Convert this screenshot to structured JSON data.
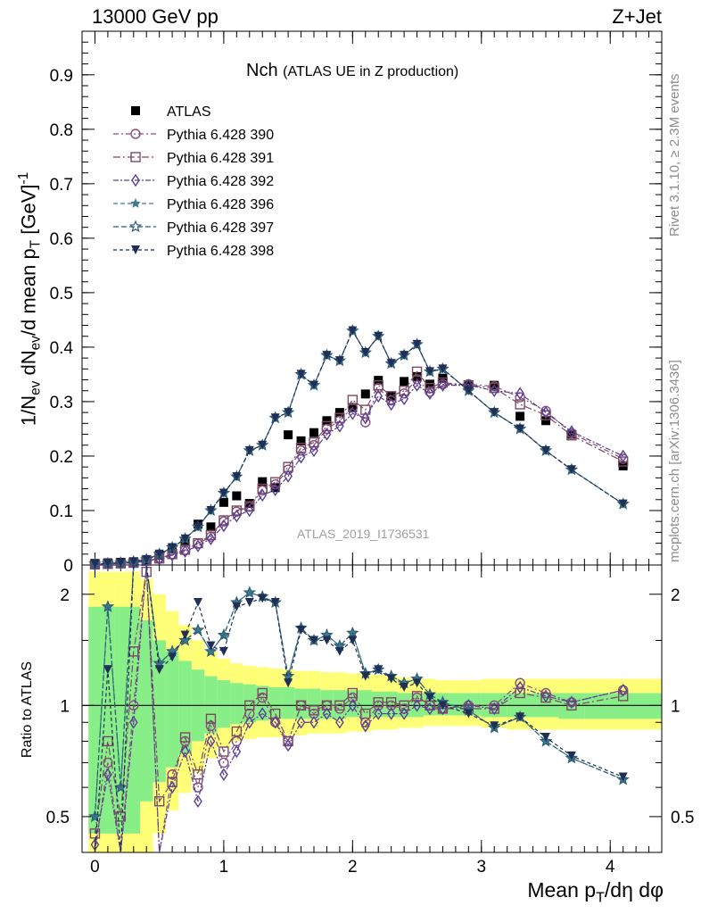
{
  "header": {
    "left": "13000 GeV pp",
    "right": "Z+Jet"
  },
  "side_text": {
    "rivet": "Rivet 3.1.10, ≥ 2.3M events",
    "mcplots": "mcplots.cern.ch [arXiv:1306.3436]"
  },
  "analysis_id": "ATLAS_2019_I1736531",
  "titles": {
    "main": "Nch",
    "sub": "(ATLAS UE in Z production)"
  },
  "axes": {
    "x_label_main": "Mean p",
    "x_label_sub": "T",
    "x_label_tail": "/dη dφ",
    "y_top_label": "1/N_ev dN_ev/d mean p_T [GeV]^-1",
    "y_bottom_label": "Ratio to ATLAS",
    "x_ticks": [
      "0",
      "1",
      "2",
      "3",
      "4"
    ],
    "y_top_ticks": [
      "0",
      "0.1",
      "0.2",
      "0.3",
      "0.4",
      "0.5",
      "0.6",
      "0.7",
      "0.8",
      "0.9"
    ],
    "y_bottom_ticks": [
      "0.5",
      "1",
      "2"
    ]
  },
  "colors": {
    "data": "#000000",
    "p390": "#8a4f7d",
    "p391": "#7a4a63",
    "p392": "#5a3f96",
    "p396": "#3f7a8c",
    "p397": "#2f5f79",
    "p398": "#1f2f55",
    "band_inner": "#88ee88",
    "band_outer": "#ffff77"
  },
  "chart_data": [
    {
      "type": "scatter",
      "panel": "main",
      "xlim": [
        -0.1,
        4.4
      ],
      "ylim": [
        0,
        0.98
      ],
      "x": [
        0.0,
        0.1,
        0.2,
        0.3,
        0.4,
        0.5,
        0.6,
        0.7,
        0.8,
        0.9,
        1.0,
        1.1,
        1.2,
        1.3,
        1.4,
        1.5,
        1.6,
        1.7,
        1.8,
        1.9,
        2.0,
        2.1,
        2.2,
        2.3,
        2.4,
        2.5,
        2.6,
        2.7,
        2.9,
        3.1,
        3.3,
        3.5,
        3.7,
        4.1
      ],
      "series": [
        {
          "name": "ATLAS",
          "marker": "filled-square",
          "values": [
            0.003,
            0.004,
            0.005,
            0.006,
            0.007,
            0.018,
            0.03,
            0.043,
            0.075,
            0.07,
            0.115,
            0.127,
            0.113,
            0.153,
            0.142,
            0.239,
            0.228,
            0.243,
            0.265,
            0.28,
            0.289,
            0.314,
            0.339,
            0.31,
            0.337,
            0.346,
            0.332,
            0.343,
            0.33,
            0.33,
            0.273,
            0.265,
            0.24,
            0.182
          ]
        },
        {
          "name": "Pythia 6.428 390",
          "marker": "open-circle",
          "values": [
            0.001,
            0.002,
            0.003,
            0.004,
            0.008,
            0.012,
            0.02,
            0.027,
            0.039,
            0.052,
            0.08,
            0.098,
            0.107,
            0.137,
            0.148,
            0.175,
            0.21,
            0.22,
            0.25,
            0.265,
            0.289,
            0.262,
            0.325,
            0.302,
            0.315,
            0.341,
            0.318,
            0.332,
            0.332,
            0.328,
            0.308,
            0.283,
            0.242,
            0.195
          ]
        },
        {
          "name": "Pythia 6.428 391",
          "marker": "open-square",
          "values": [
            0.001,
            0.002,
            0.003,
            0.004,
            0.008,
            0.012,
            0.02,
            0.028,
            0.04,
            0.055,
            0.082,
            0.1,
            0.108,
            0.14,
            0.152,
            0.18,
            0.215,
            0.225,
            0.255,
            0.27,
            0.303,
            0.285,
            0.33,
            0.31,
            0.32,
            0.355,
            0.325,
            0.335,
            0.33,
            0.325,
            0.295,
            0.275,
            0.238,
            0.19
          ]
        },
        {
          "name": "Pythia 6.428 392",
          "marker": "open-diamond",
          "values": [
            0.001,
            0.002,
            0.003,
            0.004,
            0.007,
            0.011,
            0.018,
            0.025,
            0.035,
            0.048,
            0.072,
            0.09,
            0.1,
            0.128,
            0.138,
            0.163,
            0.198,
            0.21,
            0.24,
            0.255,
            0.278,
            0.27,
            0.31,
            0.295,
            0.305,
            0.33,
            0.315,
            0.33,
            0.33,
            0.32,
            0.315,
            0.28,
            0.245,
            0.2
          ]
        },
        {
          "name": "Pythia 6.428 396",
          "marker": "filled-star",
          "values": [
            0.002,
            0.003,
            0.004,
            0.006,
            0.01,
            0.02,
            0.032,
            0.048,
            0.07,
            0.1,
            0.132,
            0.162,
            0.21,
            0.22,
            0.27,
            0.28,
            0.35,
            0.33,
            0.385,
            0.375,
            0.43,
            0.39,
            0.42,
            0.37,
            0.385,
            0.405,
            0.355,
            0.36,
            0.32,
            0.28,
            0.25,
            0.21,
            0.175,
            0.112
          ]
        },
        {
          "name": "Pythia 6.428 397",
          "marker": "open-star",
          "values": [
            0.002,
            0.003,
            0.004,
            0.006,
            0.01,
            0.02,
            0.032,
            0.048,
            0.07,
            0.1,
            0.132,
            0.162,
            0.21,
            0.22,
            0.27,
            0.28,
            0.35,
            0.33,
            0.385,
            0.375,
            0.43,
            0.39,
            0.42,
            0.37,
            0.385,
            0.405,
            0.355,
            0.36,
            0.32,
            0.28,
            0.25,
            0.21,
            0.175,
            0.112
          ]
        },
        {
          "name": "Pythia 6.428 398",
          "marker": "filled-down-triangle",
          "values": [
            0.002,
            0.003,
            0.004,
            0.006,
            0.01,
            0.02,
            0.032,
            0.048,
            0.07,
            0.1,
            0.132,
            0.162,
            0.21,
            0.22,
            0.27,
            0.28,
            0.35,
            0.33,
            0.385,
            0.375,
            0.43,
            0.39,
            0.42,
            0.37,
            0.385,
            0.405,
            0.355,
            0.36,
            0.32,
            0.28,
            0.25,
            0.21,
            0.175,
            0.112
          ]
        }
      ]
    },
    {
      "type": "scatter",
      "panel": "ratio",
      "ylabel": "Ratio to ATLAS",
      "log_scale": true,
      "ylim": [
        0.4,
        2.4
      ],
      "x": [
        0.0,
        0.1,
        0.2,
        0.3,
        0.4,
        0.5,
        0.6,
        0.7,
        0.8,
        0.9,
        1.0,
        1.1,
        1.2,
        1.3,
        1.4,
        1.5,
        1.6,
        1.7,
        1.8,
        1.9,
        2.0,
        2.1,
        2.2,
        2.3,
        2.4,
        2.5,
        2.6,
        2.7,
        2.9,
        3.1,
        3.3,
        3.5,
        3.7,
        4.1
      ],
      "band_x_edges": [
        -0.05,
        0.15,
        0.35,
        0.45,
        0.55,
        0.65,
        0.75,
        0.85,
        0.95,
        1.05,
        1.15,
        1.25,
        1.35,
        1.45,
        1.55,
        1.65,
        1.75,
        1.85,
        1.95,
        2.05,
        2.15,
        2.25,
        2.35,
        2.45,
        2.55,
        2.65,
        2.75,
        3.0,
        3.2,
        3.4,
        3.6,
        3.8,
        4.4
      ],
      "band_inner": [
        [
          0.45,
          1.85
        ],
        [
          0.45,
          1.85
        ],
        [
          0.55,
          1.7
        ],
        [
          0.62,
          1.5
        ],
        [
          0.68,
          1.4
        ],
        [
          0.74,
          1.32
        ],
        [
          0.8,
          1.25
        ],
        [
          0.84,
          1.2
        ],
        [
          0.87,
          1.17
        ],
        [
          0.89,
          1.15
        ],
        [
          0.9,
          1.14
        ],
        [
          0.91,
          1.13
        ],
        [
          0.92,
          1.12
        ],
        [
          0.92,
          1.12
        ],
        [
          0.92,
          1.11
        ],
        [
          0.92,
          1.11
        ],
        [
          0.92,
          1.1
        ],
        [
          0.92,
          1.1
        ],
        [
          0.93,
          1.1
        ],
        [
          0.93,
          1.1
        ],
        [
          0.93,
          1.09
        ],
        [
          0.93,
          1.09
        ],
        [
          0.93,
          1.08
        ],
        [
          0.93,
          1.08
        ],
        [
          0.94,
          1.08
        ],
        [
          0.94,
          1.08
        ],
        [
          0.94,
          1.08
        ],
        [
          0.93,
          1.08
        ],
        [
          0.93,
          1.08
        ],
        [
          0.93,
          1.08
        ],
        [
          0.92,
          1.08
        ],
        [
          0.92,
          1.08
        ]
      ],
      "band_outer": [
        [
          0.3,
          2.3
        ],
        [
          0.3,
          2.3
        ],
        [
          0.4,
          2.2
        ],
        [
          0.45,
          2.0
        ],
        [
          0.52,
          1.8
        ],
        [
          0.58,
          1.65
        ],
        [
          0.66,
          1.5
        ],
        [
          0.72,
          1.4
        ],
        [
          0.77,
          1.34
        ],
        [
          0.8,
          1.3
        ],
        [
          0.81,
          1.28
        ],
        [
          0.82,
          1.27
        ],
        [
          0.82,
          1.26
        ],
        [
          0.83,
          1.25
        ],
        [
          0.83,
          1.24
        ],
        [
          0.84,
          1.24
        ],
        [
          0.84,
          1.23
        ],
        [
          0.84,
          1.23
        ],
        [
          0.85,
          1.22
        ],
        [
          0.85,
          1.22
        ],
        [
          0.86,
          1.21
        ],
        [
          0.86,
          1.2
        ],
        [
          0.87,
          1.19
        ],
        [
          0.87,
          1.18
        ],
        [
          0.88,
          1.18
        ],
        [
          0.88,
          1.17
        ],
        [
          0.88,
          1.17
        ],
        [
          0.87,
          1.18
        ],
        [
          0.86,
          1.18
        ],
        [
          0.86,
          1.18
        ],
        [
          0.86,
          1.18
        ],
        [
          0.86,
          1.18
        ]
      ],
      "series": [
        {
          "name": "Pythia 6.428 390",
          "values": [
            0.4,
            0.7,
            0.4,
            1.0,
            2.4,
            0.35,
            0.65,
            0.8,
            0.6,
            0.88,
            0.7,
            0.8,
            0.95,
            1.05,
            0.9,
            0.8,
            1.0,
            0.95,
            1.0,
            0.98,
            1.05,
            0.9,
            1.0,
            1.0,
            0.98,
            1.05,
            1.0,
            0.98,
            1.0,
            1.0,
            1.15,
            1.08,
            1.02,
            1.1
          ]
        },
        {
          "name": "Pythia 6.428 391",
          "values": [
            0.45,
            0.8,
            0.5,
            1.4,
            2.3,
            0.55,
            0.62,
            0.82,
            0.65,
            0.92,
            0.75,
            0.85,
            1.0,
            1.08,
            0.95,
            0.8,
            1.0,
            0.97,
            1.0,
            1.0,
            1.08,
            0.95,
            1.02,
            1.02,
            1.0,
            1.06,
            1.0,
            0.98,
            0.98,
            0.98,
            1.08,
            1.05,
            1.0,
            1.06
          ]
        },
        {
          "name": "Pythia 6.428 392",
          "values": [
            0.42,
            0.65,
            0.4,
            0.9,
            2.4,
            0.4,
            0.6,
            0.75,
            0.55,
            0.8,
            0.65,
            0.75,
            0.9,
            0.95,
            0.9,
            0.78,
            0.9,
            0.9,
            0.95,
            0.9,
            1.0,
            0.88,
            0.95,
            0.95,
            0.95,
            1.0,
            0.98,
            0.98,
            1.0,
            0.98,
            1.12,
            1.06,
            1.02,
            1.1
          ]
        },
        {
          "name": "Pythia 6.428 396",
          "values": [
            0.5,
            1.85,
            0.6,
            2.4,
            2.4,
            1.3,
            1.4,
            1.5,
            1.6,
            1.4,
            1.55,
            1.9,
            2.02,
            1.97,
            1.9,
            1.2,
            1.62,
            1.5,
            1.55,
            1.45,
            1.57,
            1.22,
            1.25,
            1.2,
            1.15,
            1.18,
            1.07,
            1.02,
            0.97,
            0.87,
            0.93,
            0.8,
            0.72,
            0.63
          ]
        },
        {
          "name": "Pythia 6.428 397",
          "values": [
            0.5,
            1.85,
            0.6,
            2.4,
            2.4,
            1.3,
            1.4,
            1.5,
            1.6,
            1.4,
            1.55,
            1.9,
            2.02,
            1.97,
            1.9,
            1.2,
            1.62,
            1.5,
            1.55,
            1.45,
            1.57,
            1.22,
            1.25,
            1.2,
            1.15,
            1.18,
            1.07,
            1.02,
            0.97,
            0.87,
            0.93,
            0.8,
            0.72,
            0.63
          ]
        },
        {
          "name": "Pythia 6.428 398",
          "values": [
            0.4,
            1.25,
            0.4,
            2.4,
            2.4,
            1.25,
            1.35,
            1.55,
            1.9,
            1.45,
            1.4,
            1.85,
            1.9,
            1.95,
            1.9,
            1.15,
            1.6,
            1.5,
            1.5,
            1.4,
            1.5,
            1.2,
            1.25,
            1.18,
            1.12,
            1.15,
            1.05,
            1.0,
            0.95,
            0.88,
            0.93,
            0.82,
            0.73,
            0.64
          ]
        }
      ]
    }
  ]
}
